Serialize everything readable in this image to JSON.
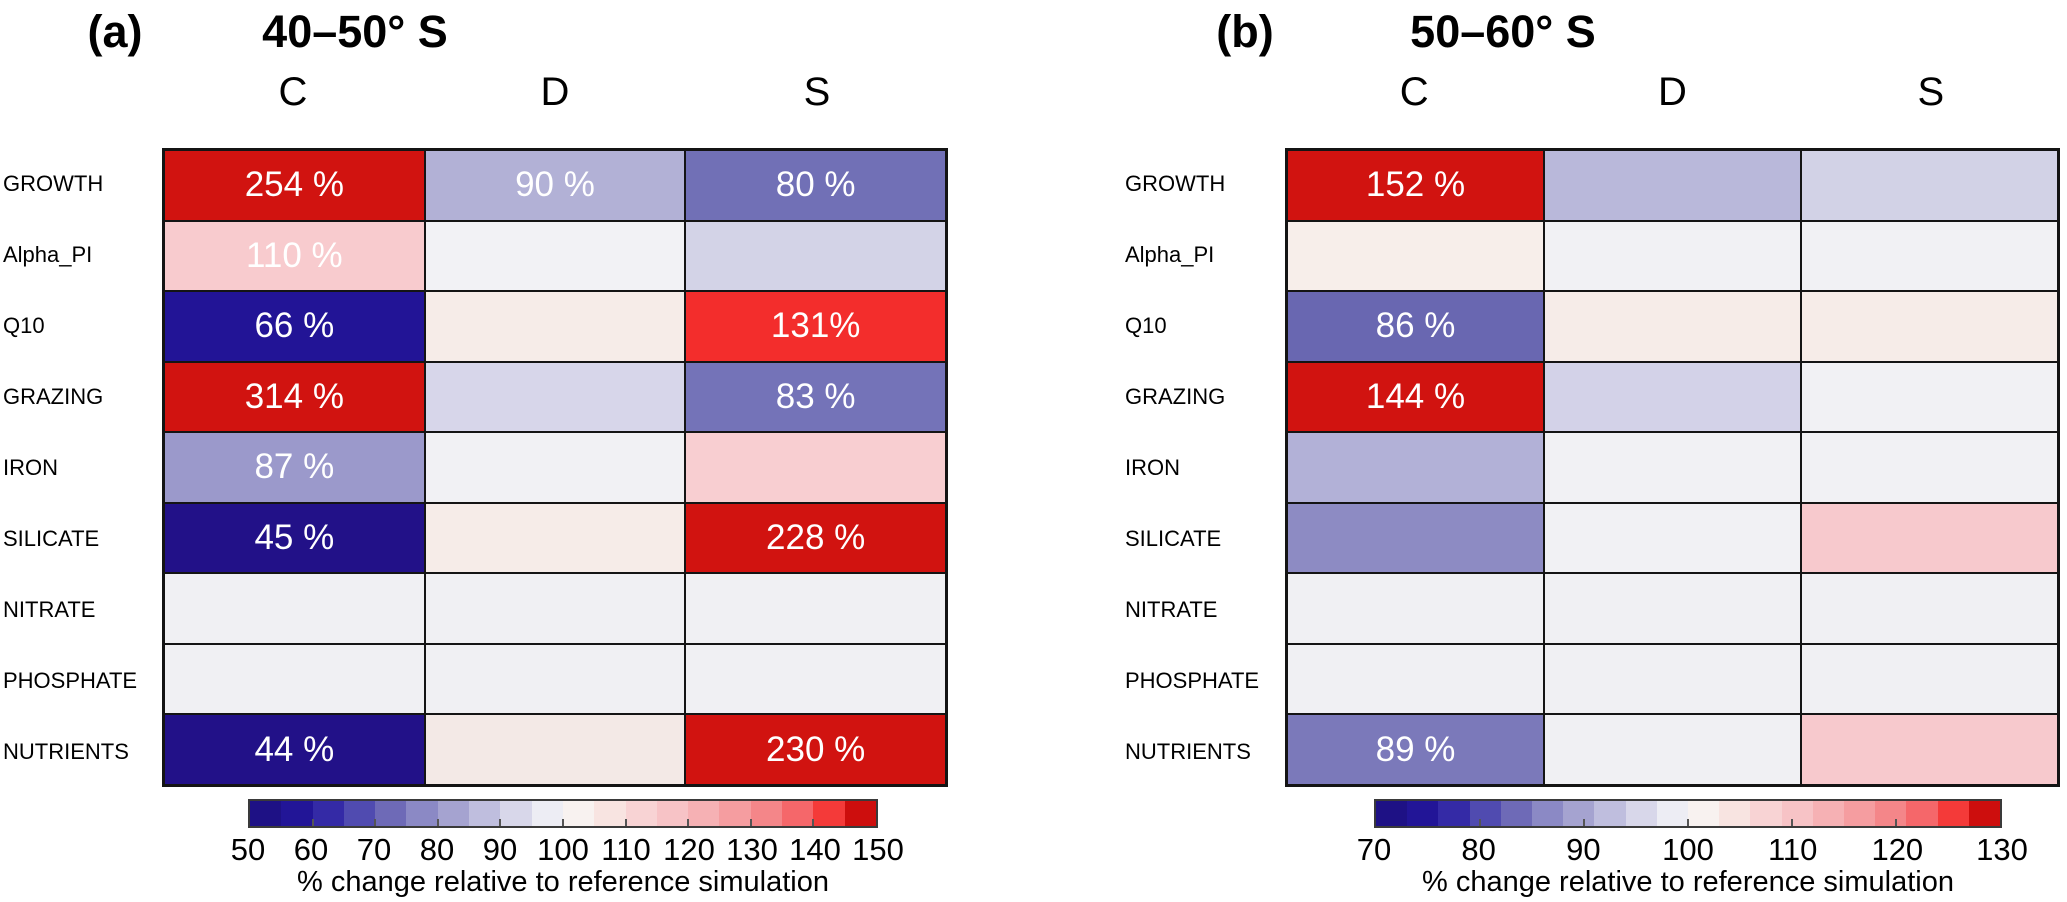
{
  "values_unit": "%",
  "colorbar_colors": [
    "#1e1185",
    "#221597",
    "#342aa6",
    "#504bb0",
    "#6e6ab7",
    "#8b89c5",
    "#a5a3d0",
    "#bfbede",
    "#d8d7ea",
    "#ededf4",
    "#f8f2f0",
    "#f8e4e1",
    "#f8d3d4",
    "#f7c3c6",
    "#f6b1b4",
    "#f59da0",
    "#f48689",
    "#f5676a",
    "#f43a39",
    "#cd0e0d"
  ],
  "chart_data": [
    {
      "type": "heatmap",
      "panel_tag": "(a)",
      "title": "40–50° S",
      "columns": [
        "C",
        "D",
        "S"
      ],
      "rows": [
        "GROWTH",
        "Alpha_PI",
        "Q10",
        "GRAZING",
        "IRON",
        "SILICATE",
        "NITRATE",
        "PHOSPHATE",
        "NUTRIENTS"
      ],
      "cell_labels": [
        [
          "254 %",
          "90 %",
          "80 %"
        ],
        [
          "110 %",
          "",
          ""
        ],
        [
          "66 %",
          "",
          "131%"
        ],
        [
          "314 %",
          "",
          "83 %"
        ],
        [
          "87 %",
          "",
          ""
        ],
        [
          "45 %",
          "",
          "228 %"
        ],
        [
          "",
          "",
          ""
        ],
        [
          "",
          "",
          ""
        ],
        [
          "44 %",
          "",
          "230 %"
        ]
      ],
      "values": [
        [
          254,
          90,
          80
        ],
        [
          110,
          100,
          95
        ],
        [
          66,
          103,
          131
        ],
        [
          314,
          96,
          83
        ],
        [
          87,
          100,
          110
        ],
        [
          45,
          103,
          228
        ],
        [
          100,
          100,
          100
        ],
        [
          100,
          100,
          100
        ],
        [
          44,
          102,
          230
        ]
      ],
      "cell_colors": [
        [
          "#d11310",
          "#b2b1d6",
          "#7170b6"
        ],
        [
          "#f8cbce",
          "#f2f2f5",
          "#d3d3e7"
        ],
        [
          "#221496",
          "#f6ece8",
          "#f32d2c"
        ],
        [
          "#d11310",
          "#d7d6ea",
          "#7473b8"
        ],
        [
          "#9b99cb",
          "#f1f1f4",
          "#f8ced1"
        ],
        [
          "#221188",
          "#f6ece8",
          "#d11310"
        ],
        [
          "#f0f0f3",
          "#f0f0f3",
          "#f0f0f3"
        ],
        [
          "#f0f0f3",
          "#f0f0f3",
          "#f0f0f3"
        ],
        [
          "#221188",
          "#f3e9e6",
          "#d11310"
        ]
      ],
      "colorbar": {
        "ticks": [
          50,
          60,
          70,
          80,
          90,
          100,
          110,
          120,
          130,
          140,
          150
        ],
        "range": [
          50,
          150
        ],
        "label": "% change relative to reference simulation"
      }
    },
    {
      "type": "heatmap",
      "panel_tag": "(b)",
      "title": "50–60° S",
      "columns": [
        "C",
        "D",
        "S"
      ],
      "rows": [
        "GROWTH",
        "Alpha_PI",
        "Q10",
        "GRAZING",
        "IRON",
        "SILICATE",
        "NITRATE",
        "PHOSPHATE",
        "NUTRIENTS"
      ],
      "cell_labels": [
        [
          "152 %",
          "",
          ""
        ],
        [
          "",
          "",
          ""
        ],
        [
          "86 %",
          "",
          ""
        ],
        [
          "144 %",
          "",
          ""
        ],
        [
          "",
          "",
          ""
        ],
        [
          "",
          "",
          ""
        ],
        [
          "",
          "",
          ""
        ],
        [
          "",
          "",
          ""
        ],
        [
          "89 %",
          "",
          ""
        ]
      ],
      "values": [
        [
          152,
          93,
          96
        ],
        [
          102,
          100,
          100
        ],
        [
          86,
          103,
          103
        ],
        [
          144,
          96,
          100
        ],
        [
          92,
          100,
          100
        ],
        [
          88,
          100,
          109
        ],
        [
          100,
          100,
          100
        ],
        [
          100,
          100,
          100
        ],
        [
          89,
          100,
          109
        ]
      ],
      "cell_colors": [
        [
          "#d11310",
          "#b9b8da",
          "#d2d2e6"
        ],
        [
          "#f7eeea",
          "#f1f1f4",
          "#f1f1f4"
        ],
        [
          "#6967b1",
          "#f6ece8",
          "#f6ece8"
        ],
        [
          "#d11310",
          "#d3d2e8",
          "#f1f1f4"
        ],
        [
          "#b2b1d7",
          "#f1f1f4",
          "#f1f1f4"
        ],
        [
          "#8d8bc3",
          "#f1f1f4",
          "#f7c9cd"
        ],
        [
          "#f0f0f3",
          "#f0f0f3",
          "#f0f0f3"
        ],
        [
          "#f0f0f3",
          "#f0f0f3",
          "#f0f0f3"
        ],
        [
          "#7b79ba",
          "#f0f0f3",
          "#f7c9cd"
        ]
      ],
      "colorbar": {
        "ticks": [
          70,
          80,
          90,
          100,
          110,
          120,
          130
        ],
        "range": [
          70,
          130
        ],
        "label": "% change relative to reference simulation"
      }
    }
  ]
}
